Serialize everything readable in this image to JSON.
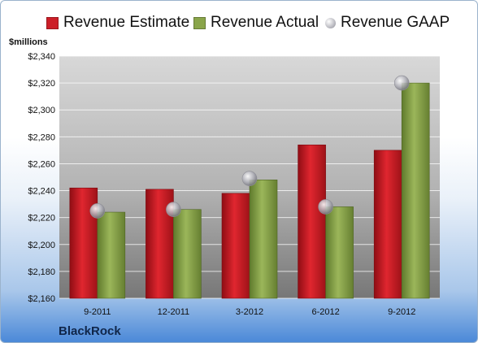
{
  "colors": {
    "estimate": "#cc1f28",
    "actual": "#8aa54a",
    "gaap": "#b3b3bb",
    "frame_bottom": "#4b89d8"
  },
  "chart_data": {
    "type": "bar",
    "categories": [
      "9-2011",
      "12-2011",
      "3-2012",
      "6-2012",
      "9-2012"
    ],
    "series": [
      {
        "name": "Revenue Estimate",
        "kind": "bar",
        "values": [
          2242,
          2241,
          2238,
          2274,
          2270
        ]
      },
      {
        "name": "Revenue Actual",
        "kind": "bar",
        "values": [
          2224,
          2226,
          2248,
          2228,
          2320
        ]
      },
      {
        "name": "Revenue GAAP",
        "kind": "point",
        "values": [
          2225,
          2226,
          2249,
          2228,
          2320
        ]
      }
    ],
    "ylabel": "$millions",
    "ylim": [
      2160,
      2340
    ],
    "yticks": [
      "$2,160",
      "$2,180",
      "$2,200",
      "$2,220",
      "$2,240",
      "$2,260",
      "$2,280",
      "$2,300",
      "$2,320",
      "$2,340"
    ],
    "grid": true,
    "legend_position": "top",
    "company": "BlackRock"
  }
}
